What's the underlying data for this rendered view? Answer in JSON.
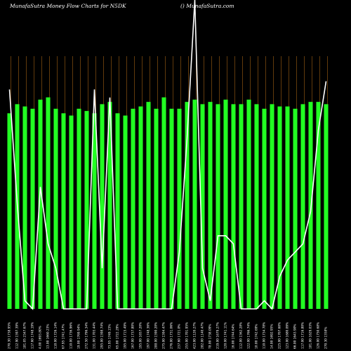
{
  "header": {
    "left_title": "MunafaSutra  Money Flow  Charts for N5DK",
    "right_title": "() MunafaSutra.com"
  },
  "colors": {
    "background": "#000000",
    "bar": "#22ff22",
    "grid_line": "#7a4a10",
    "price_line": "#ffffff"
  },
  "chart_data": {
    "type": "bar",
    "title": "MunafaSutra  Money Flow  Charts for N5DK",
    "grid": true,
    "categories": [
      "270.30 1738.95%",
      "112.90 1597.39%",
      "181.05 2347.67%",
      "117.60 1748.19%",
      "4.00 1693.80%",
      "13.00 1660.23%",
      "110.00 1726.14%",
      "67.95 1741.47%",
      "110.00 1736.96%",
      "19.00 1769.94%",
      "272.50 1796.34%",
      "131.00 1703.44%",
      "295.00 1598.74%",
      "73.95 1749.15%",
      "65.00 1722.29%",
      "195.00 1715.49%",
      "167.00 1737.80%",
      "195.00 1657.20%",
      "197.00 1748.36%",
      "288.00 1590.20%",
      "275.00 1594.47%",
      "276.00 1731.06%",
      "237.60 1721.0%",
      "255.00 1701.95%",
      "423.00 1120.27%",
      "282.00 1140.47%",
      "78.00 1738.09%",
      "219.00 1679.27%",
      "120.00 1741.11%",
      "16.00 1744.64%",
      "112.00 1562.28%",
      "122.00 1766.74%",
      "10.00 1742.69%",
      "110.00 1734.78%",
      "14.00 1692.95%",
      "225.00 1707.60%",
      "123.00 1680.09%",
      "66.00 1643.90%",
      "117.00 1716.80%",
      "181.00 1629.03%",
      "126.00 1750.68%",
      "270.30 1558%"
    ],
    "series": [
      {
        "type": "bar",
        "values": [
          0.86,
          0.9,
          0.89,
          0.88,
          0.92,
          0.93,
          0.88,
          0.86,
          0.85,
          0.88,
          0.87,
          0.86,
          0.9,
          0.91,
          0.86,
          0.85,
          0.88,
          0.89,
          0.91,
          0.88,
          0.93,
          0.88,
          0.88,
          0.91,
          0.92,
          0.9,
          0.91,
          0.9,
          0.92,
          0.9,
          0.9,
          0.92,
          0.9,
          0.88,
          0.9,
          0.89,
          0.89,
          0.88,
          0.9,
          0.91,
          0.91,
          0.9
        ]
      },
      {
        "type": "line",
        "values": [
          0.7,
          0.56,
          0.44,
          0.43,
          0.58,
          0.51,
          0.48,
          0.43,
          0.43,
          0.43,
          0.43,
          0.7,
          0.48,
          0.69,
          0.43,
          0.43,
          0.43,
          0.43,
          0.43,
          0.43,
          0.43,
          0.43,
          0.5,
          0.64,
          0.81,
          0.48,
          0.44,
          0.52,
          0.52,
          0.51,
          0.43,
          0.43,
          0.43,
          0.44,
          0.43,
          0.47,
          0.49,
          0.5,
          0.51,
          0.55,
          0.65,
          0.71
        ]
      }
    ]
  }
}
